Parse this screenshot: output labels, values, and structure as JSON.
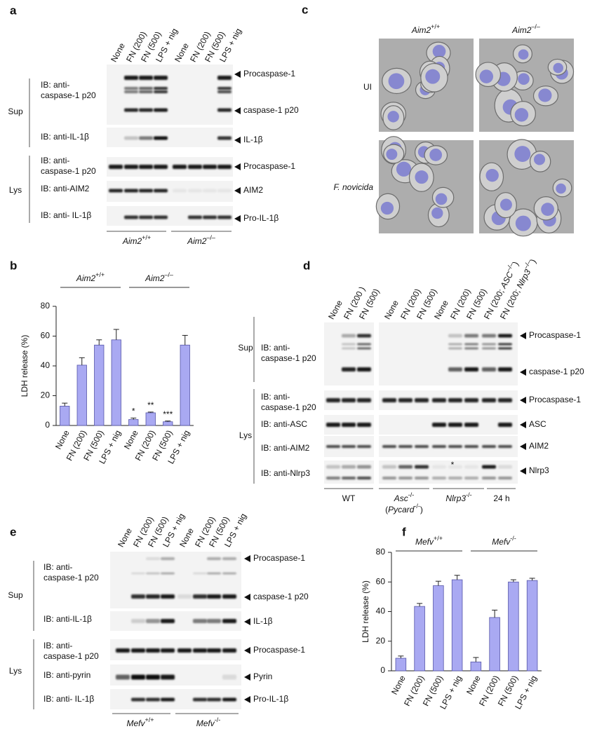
{
  "chart_data": [
    {
      "type": "bar",
      "panel": "b",
      "categories": [
        "None",
        "FN (200)",
        "FN (500)",
        "LPS + nig",
        "None",
        "FN (200)",
        "FN (500)",
        "LPS + nig"
      ],
      "values": [
        13,
        40.5,
        54,
        57.5,
        4,
        8.5,
        2.5,
        54
      ],
      "errors": [
        2,
        5,
        3.5,
        7,
        1,
        0.5,
        0.5,
        6.5
      ],
      "annotations": [
        null,
        null,
        null,
        null,
        "*",
        "**",
        "***",
        null
      ],
      "groups": [
        {
          "name": "Aim2",
          "sup": "+/+"
        },
        {
          "name": "Aim2",
          "sup": "–/–"
        }
      ],
      "ylabel": "LDH release (%)",
      "ylim": [
        0,
        80
      ],
      "yticks": [
        0,
        20,
        40,
        60,
        80
      ],
      "color": "#a9a9f2"
    },
    {
      "type": "bar",
      "panel": "f",
      "categories": [
        "None",
        "FN (200)",
        "FN (500)",
        "LPS + nig",
        "None",
        "FN (200)",
        "FN (500)",
        "LPS + nig"
      ],
      "values": [
        8.5,
        43.5,
        57.5,
        61.5,
        6,
        36,
        60,
        61
      ],
      "errors": [
        1.5,
        2,
        3,
        3,
        3,
        5,
        1.5,
        1.5
      ],
      "groups": [
        {
          "name": "Mefv",
          "sup": "+/+"
        },
        {
          "name": "Mefv",
          "sup": "-/-"
        }
      ],
      "ylabel": "LDH release (%)",
      "ylim": [
        0,
        80
      ],
      "yticks": [
        0,
        20,
        40,
        60,
        80
      ],
      "color": "#a9a9f2"
    }
  ],
  "figure": {
    "a": {
      "label": "a",
      "lanes": [
        "None",
        "FN (200)",
        "FN (500)",
        "LPS + nig",
        "None",
        "FN (200)",
        "FN (500)",
        "LPS + nig"
      ],
      "fractions": [
        "Sup",
        "Lys"
      ],
      "antibodies": [
        [
          "IB: anti-",
          "caspase-1 p20"
        ],
        [
          "IB: anti-IL-1β"
        ],
        [
          "IB: anti-",
          "caspase-1 p20"
        ],
        [
          "IB: anti-AIM2"
        ],
        [
          "IB: anti- IL-1β"
        ]
      ],
      "bands": [
        "Procaspase-1",
        "caspase-1 p20",
        "IL-1β",
        "Procaspase-1",
        "AIM2",
        "Pro-IL-1β"
      ],
      "genotypes": [
        {
          "name": "Aim2",
          "sup": "+/+"
        },
        {
          "name": "Aim2",
          "sup": "–/–"
        }
      ]
    },
    "c": {
      "label": "c",
      "columns": [
        {
          "name": "Aim2",
          "sup": "+/+"
        },
        {
          "name": "Aim2",
          "sup": "–/–"
        }
      ],
      "rows": [
        "UI",
        "F. novicida"
      ]
    },
    "d": {
      "label": "d",
      "lanes": [
        "None",
        "FN (200 )",
        "FN (500)",
        "None",
        "FN (200)",
        "FN (500)",
        "None",
        "FN (200)",
        "FN (500)",
        {
          "pre": "FN (200; ",
          "name": "ASC",
          "sup": "–/–",
          "post": ")"
        },
        {
          "pre": "FN (200; ",
          "name": "Nlrp3",
          "sup": "–/–",
          "post": ")"
        }
      ],
      "fractions": [
        "Sup",
        "Lys"
      ],
      "antibodies": [
        [
          "IB: anti-",
          "caspase-1 p20"
        ],
        [
          "IB: anti-",
          "caspase-1 p20"
        ],
        [
          "IB: anti-ASC"
        ],
        [
          "IB: anti-AIM2"
        ],
        [
          "IB: anti-Nlrp3"
        ]
      ],
      "bands": [
        "Procaspase-1",
        "caspase-1 p20",
        "Procaspase-1",
        "ASC",
        "AIM2",
        "Nlrp3"
      ],
      "groups": [
        {
          "name": "WT"
        },
        {
          "name": "Asc",
          "sup": "-/-"
        },
        {
          "name": "Nlrp3",
          "sup": "-/-"
        },
        {
          "name": "24 h"
        }
      ],
      "asc_alias": {
        "pre": "(",
        "name": "Pycard",
        "sup": "-/-",
        "post": ")"
      },
      "asterisk": "*"
    },
    "e": {
      "label": "e",
      "lanes": [
        "None",
        "FN (200)",
        "FN (500)",
        "LPS + nig",
        "None",
        "FN (200)",
        "FN (500)",
        "LPS + nig"
      ],
      "fractions": [
        "Sup",
        "Lys"
      ],
      "antibodies": [
        [
          "IB: anti-",
          "caspase-1 p20"
        ],
        [
          "IB: anti-IL-1β"
        ],
        [
          "IB: anti-",
          "caspase-1 p20"
        ],
        [
          "IB: anti-pyrin"
        ],
        [
          "IB: anti- IL-1β"
        ]
      ],
      "bands": [
        "Procaspase-1",
        "caspase-1 p20",
        "IL-1β",
        "Procaspase-1",
        "Pyrin",
        "Pro-IL-1β"
      ],
      "genotypes": [
        {
          "name": "Mefv",
          "sup": "+/+"
        },
        {
          "name": "Mefv",
          "sup": "-/-"
        }
      ]
    }
  }
}
